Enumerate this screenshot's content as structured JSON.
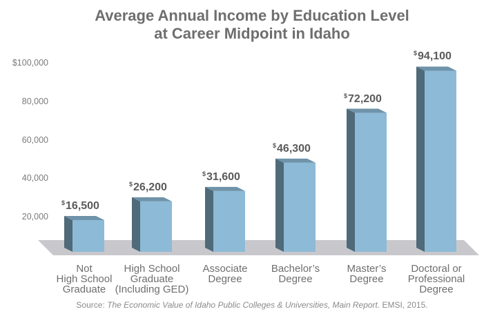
{
  "chart_data": {
    "type": "bar",
    "title_lines": [
      "Average Annual Income by Education Level",
      "at Career Midpoint in Idaho"
    ],
    "categories": [
      [
        "Not",
        "High School",
        "Graduate"
      ],
      [
        "High School",
        "Graduate",
        "(Including GED)"
      ],
      [
        "Associate",
        "Degree"
      ],
      [
        "Bachelor’s",
        "Degree"
      ],
      [
        "Master’s",
        "Degree"
      ],
      [
        "Doctoral or",
        "Professional",
        "Degree"
      ]
    ],
    "values": [
      16500,
      26200,
      31600,
      46300,
      72200,
      94100
    ],
    "value_labels": [
      "16,500",
      "26,200",
      "31,600",
      "46,300",
      "72,200",
      "94,100"
    ],
    "currency_symbol": "$",
    "yticks": [
      "$100,000",
      "80,000",
      "60,000",
      "40,000",
      "20,000"
    ],
    "ytick_values": [
      100000,
      80000,
      60000,
      40000,
      20000
    ],
    "ylim": [
      0,
      100000
    ],
    "grid": false,
    "colors": {
      "bar_front": "#8dbad6",
      "bar_side": "#4f6a78",
      "bar_top": "#6f93a9",
      "floor": "#c8c8cc"
    }
  },
  "source": {
    "prefix": "Source: ",
    "title": "The Economic Value of Idaho Public Colleges & Universities, Main Report",
    "suffix": ". EMSI, 2015."
  }
}
